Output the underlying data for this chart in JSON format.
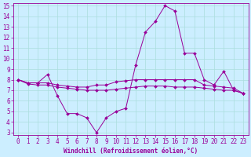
{
  "xlabel": "Windchill (Refroidissement éolien,°C)",
  "background_color": "#cceeff",
  "line_color": "#990099",
  "grid_color": "#aadddd",
  "xlim": [
    -0.5,
    23.5
  ],
  "ylim": [
    2.8,
    15.2
  ],
  "yticks": [
    3,
    4,
    5,
    6,
    7,
    8,
    9,
    10,
    11,
    12,
    13,
    14,
    15
  ],
  "xticks": [
    0,
    1,
    2,
    3,
    4,
    5,
    6,
    7,
    8,
    9,
    10,
    11,
    12,
    13,
    14,
    15,
    16,
    17,
    18,
    19,
    20,
    21,
    22,
    23
  ],
  "series": [
    [
      8.0,
      7.7,
      7.7,
      8.5,
      6.5,
      4.8,
      4.8,
      4.4,
      3.0,
      4.4,
      5.0,
      5.3,
      9.4,
      12.5,
      13.5,
      15.0,
      14.5,
      10.5,
      10.5,
      8.0,
      7.5,
      8.8,
      7.0,
      6.7
    ],
    [
      8.0,
      7.7,
      7.7,
      7.7,
      7.5,
      7.4,
      7.3,
      7.3,
      7.5,
      7.5,
      7.8,
      7.9,
      8.0,
      8.0,
      8.0,
      8.0,
      8.0,
      8.0,
      8.0,
      7.5,
      7.4,
      7.3,
      7.2,
      6.7
    ],
    [
      8.0,
      7.6,
      7.5,
      7.5,
      7.3,
      7.2,
      7.1,
      7.0,
      7.0,
      7.0,
      7.1,
      7.2,
      7.3,
      7.4,
      7.4,
      7.4,
      7.3,
      7.3,
      7.3,
      7.2,
      7.1,
      7.0,
      7.0,
      6.7
    ]
  ],
  "tick_fontsize": 5.5,
  "xlabel_fontsize": 5.5
}
